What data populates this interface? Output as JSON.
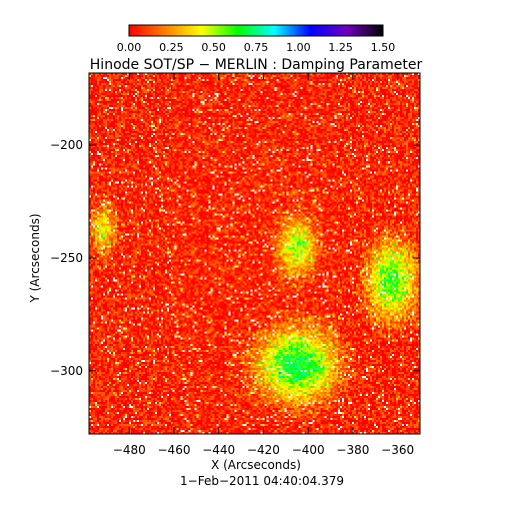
{
  "chart_data": {
    "type": "heatmap",
    "title": "Hinode SOT/SP − MERLIN : Damping Parameter",
    "xlabel": "X (Arcseconds)",
    "ylabel": "Y (Arcseconds)",
    "date_label": "1−Feb−2011 04:40:04.379",
    "xlim": [
      -498,
      -350
    ],
    "ylim": [
      -328,
      -168
    ],
    "x_ticks": [
      -480,
      -460,
      -440,
      -420,
      -400,
      -380,
      -360
    ],
    "y_ticks": [
      -200,
      -250,
      -300
    ],
    "x_tick_labels": [
      "−480",
      "−460",
      "−440",
      "−420",
      "−400",
      "−380",
      "−360"
    ],
    "y_tick_labels": [
      "−200",
      "−250",
      "−300"
    ],
    "colorbar": {
      "range": [
        0.0,
        1.5
      ],
      "ticks": [
        0.0,
        0.25,
        0.5,
        0.75,
        1.0,
        1.25,
        1.5
      ],
      "tick_labels": [
        "0.00",
        "0.25",
        "0.50",
        "0.75",
        "1.00",
        "1.25",
        "1.50"
      ],
      "colors": [
        "#ff0000",
        "#ff8000",
        "#ffff00",
        "#00ff00",
        "#00ffff",
        "#0000ff",
        "#7000c0",
        "#000000"
      ]
    },
    "field_features": [
      {
        "kind": "elevated_region",
        "x_range": [
          -425,
          -385
        ],
        "y_range": [
          -315,
          -280
        ],
        "peak_value": 0.7
      },
      {
        "kind": "elevated_region",
        "x_range": [
          -375,
          -350
        ],
        "y_range": [
          -280,
          -240
        ],
        "peak_value": 0.6
      },
      {
        "kind": "elevated_region",
        "x_range": [
          -498,
          -485
        ],
        "y_range": [
          -250,
          -225
        ],
        "peak_value": 0.4
      },
      {
        "kind": "elevated_region",
        "x_range": [
          -415,
          -395
        ],
        "y_range": [
          -260,
          -230
        ],
        "peak_value": 0.5
      },
      {
        "kind": "background",
        "value": 0.05
      }
    ]
  }
}
